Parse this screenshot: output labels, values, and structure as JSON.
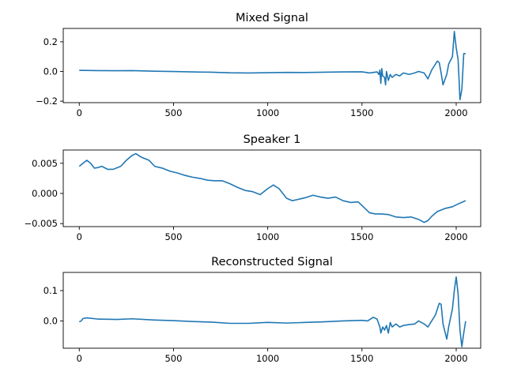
{
  "figure": {
    "background": "#ffffff"
  },
  "chart_data": [
    {
      "type": "line",
      "title": "Mixed Signal",
      "xlabel": "",
      "ylabel": "",
      "xlim": [
        -85,
        2130
      ],
      "ylim": [
        -0.21,
        0.29
      ],
      "xticks": [
        0,
        500,
        1000,
        1500,
        2000
      ],
      "xtick_labels": [
        "0",
        "500",
        "1000",
        "1500",
        "2000"
      ],
      "yticks": [
        -0.2,
        0.0,
        0.2
      ],
      "ytick_labels": [
        "−0.2",
        "0.0",
        "0.2"
      ],
      "grid": false,
      "series": [
        {
          "color": "#1f77b4",
          "x": [
            0,
            100,
            200,
            280,
            400,
            500,
            600,
            700,
            800,
            900,
            1000,
            1100,
            1200,
            1300,
            1400,
            1500,
            1540,
            1580,
            1590,
            1595,
            1600,
            1605,
            1610,
            1620,
            1625,
            1630,
            1640,
            1650,
            1660,
            1680,
            1700,
            1720,
            1750,
            1780,
            1800,
            1830,
            1850,
            1870,
            1880,
            1900,
            1910,
            1920,
            1930,
            1950,
            1960,
            1980,
            1990,
            2000,
            2010,
            2015,
            2020,
            2030,
            2040,
            2050
          ],
          "y": [
            0.008,
            0.006,
            0.005,
            0.006,
            0.002,
            0.0,
            -0.003,
            -0.005,
            -0.009,
            -0.01,
            -0.008,
            -0.006,
            -0.007,
            -0.005,
            -0.003,
            -0.002,
            -0.01,
            -0.003,
            -0.02,
            0.01,
            -0.08,
            0.02,
            -0.03,
            -0.04,
            -0.09,
            0.0,
            -0.06,
            -0.02,
            -0.04,
            -0.02,
            -0.03,
            -0.01,
            -0.02,
            -0.01,
            0.0,
            -0.01,
            -0.05,
            0.01,
            0.03,
            0.07,
            0.06,
            -0.01,
            -0.09,
            -0.02,
            0.05,
            0.1,
            0.27,
            0.16,
            0.08,
            -0.05,
            -0.19,
            -0.12,
            0.12,
            0.12
          ]
        }
      ]
    },
    {
      "type": "line",
      "title": "Speaker 1",
      "xlabel": "",
      "ylabel": "",
      "xlim": [
        -85,
        2130
      ],
      "ylim": [
        -0.0055,
        0.0072
      ],
      "xticks": [
        0,
        500,
        1000,
        1500,
        2000
      ],
      "xtick_labels": [
        "0",
        "500",
        "1000",
        "1500",
        "2000"
      ],
      "yticks": [
        -0.005,
        0.0,
        0.005
      ],
      "ytick_labels": [
        "−0.005",
        "0.000",
        "0.005"
      ],
      "grid": false,
      "series": [
        {
          "color": "#1f77b4",
          "x": [
            0,
            20,
            40,
            60,
            80,
            100,
            120,
            150,
            180,
            220,
            250,
            280,
            300,
            330,
            370,
            400,
            440,
            480,
            520,
            560,
            600,
            640,
            680,
            720,
            760,
            800,
            840,
            880,
            920,
            960,
            1000,
            1030,
            1060,
            1100,
            1130,
            1160,
            1200,
            1240,
            1280,
            1320,
            1360,
            1400,
            1440,
            1480,
            1510,
            1540,
            1570,
            1600,
            1640,
            1680,
            1720,
            1760,
            1800,
            1830,
            1850,
            1870,
            1900,
            1940,
            1980,
            2020,
            2050
          ],
          "y": [
            0.0045,
            0.005,
            0.0055,
            0.005,
            0.0042,
            0.0043,
            0.0045,
            0.004,
            0.004,
            0.0045,
            0.0055,
            0.0063,
            0.0066,
            0.006,
            0.0055,
            0.0045,
            0.0042,
            0.0037,
            0.0034,
            0.003,
            0.0027,
            0.0025,
            0.0022,
            0.0021,
            0.0021,
            0.0016,
            0.001,
            0.0005,
            0.0003,
            -0.0002,
            0.0008,
            0.0014,
            0.0008,
            -0.0008,
            -0.0012,
            -0.001,
            -0.0007,
            -0.0003,
            -0.0006,
            -0.0008,
            -0.0006,
            -0.0012,
            -0.0015,
            -0.0014,
            -0.0023,
            -0.0032,
            -0.0034,
            -0.0034,
            -0.0035,
            -0.0039,
            -0.004,
            -0.0039,
            -0.0043,
            -0.0048,
            -0.0045,
            -0.0038,
            -0.003,
            -0.0025,
            -0.0022,
            -0.0016,
            -0.0012
          ]
        }
      ]
    },
    {
      "type": "line",
      "title": "Reconstructed Signal",
      "xlabel": "",
      "ylabel": "",
      "xlim": [
        -85,
        2130
      ],
      "ylim": [
        -0.09,
        0.16
      ],
      "xticks": [
        0,
        500,
        1000,
        1500,
        2000
      ],
      "xtick_labels": [
        "0",
        "500",
        "1000",
        "1500",
        "2000"
      ],
      "yticks": [
        0.0,
        0.1
      ],
      "ytick_labels": [
        "0.0",
        "0.1"
      ],
      "grid": false,
      "series": [
        {
          "color": "#1f77b4",
          "x": [
            0,
            10,
            20,
            40,
            100,
            200,
            280,
            400,
            500,
            600,
            700,
            800,
            900,
            1000,
            1100,
            1200,
            1300,
            1400,
            1500,
            1530,
            1560,
            1580,
            1595,
            1600,
            1610,
            1620,
            1630,
            1640,
            1650,
            1660,
            1680,
            1700,
            1720,
            1750,
            1780,
            1800,
            1830,
            1850,
            1870,
            1890,
            1910,
            1920,
            1930,
            1950,
            1960,
            1980,
            1990,
            2000,
            2010,
            2020,
            2030,
            2040,
            2050
          ],
          "y": [
            -0.003,
            0.0,
            0.008,
            0.01,
            0.006,
            0.005,
            0.007,
            0.003,
            0.001,
            -0.002,
            -0.004,
            -0.008,
            -0.008,
            -0.005,
            -0.007,
            -0.005,
            -0.003,
            0.0,
            0.002,
            0.0,
            0.012,
            0.006,
            -0.02,
            -0.04,
            -0.02,
            -0.03,
            -0.015,
            -0.04,
            -0.005,
            -0.02,
            -0.01,
            -0.02,
            -0.015,
            -0.012,
            -0.01,
            0.0,
            -0.01,
            -0.02,
            0.0,
            0.02,
            0.058,
            0.055,
            -0.01,
            -0.06,
            -0.02,
            0.04,
            0.1,
            0.145,
            0.09,
            -0.03,
            -0.085,
            -0.04,
            -0.001
          ]
        }
      ]
    }
  ]
}
